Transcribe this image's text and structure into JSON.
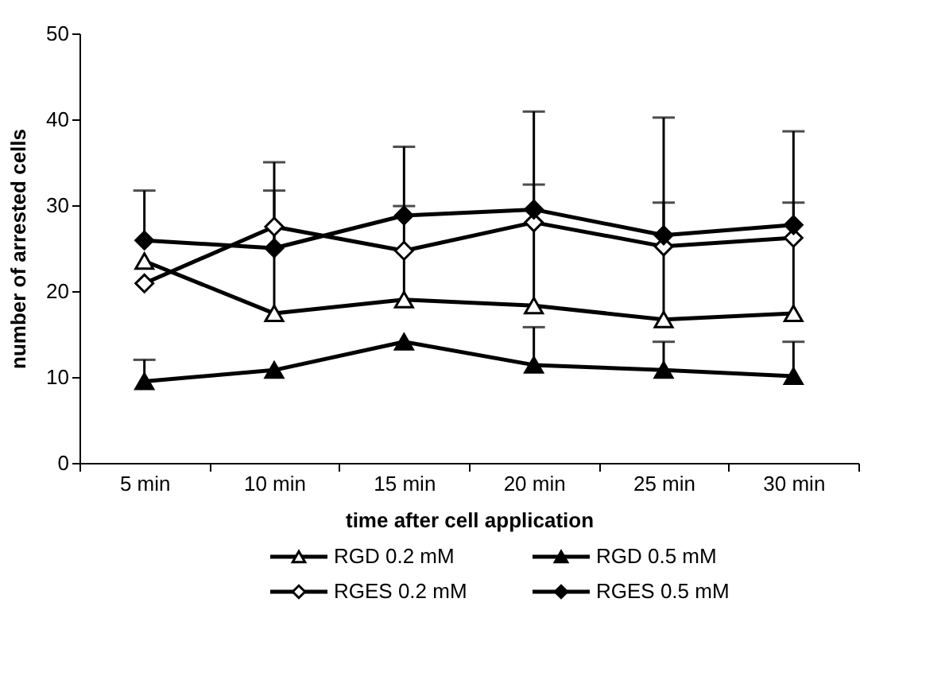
{
  "chart_data": {
    "type": "line",
    "xlabel": "time after cell application",
    "ylabel": "number of arrested cells",
    "categories": [
      "5 min",
      "10 min",
      "15 min",
      "20 min",
      "25 min",
      "30 min"
    ],
    "series": [
      {
        "name": "RGD 0.2 mM",
        "color": "#ffffff",
        "marker": "triangle",
        "values": [
          23.5,
          17.4,
          19.0,
          18.3,
          16.7,
          17.4
        ],
        "errors": [
          null,
          [
            17.4,
            31.7
          ],
          [
            19.0,
            29.9
          ],
          [
            18.3,
            32.4
          ],
          [
            16.7,
            30.3
          ],
          [
            17.4,
            30.3
          ]
        ]
      },
      {
        "name": "RGD 0.5 mM",
        "color": "#000000",
        "marker": "triangle",
        "values": [
          9.5,
          10.8,
          14.1,
          11.4,
          10.8,
          10.1
        ],
        "errors": [
          [
            9.5,
            12.0
          ],
          null,
          null,
          [
            11.4,
            15.8
          ],
          [
            10.8,
            14.1
          ],
          [
            10.1,
            14.1
          ]
        ]
      },
      {
        "name": "RGES 0.2 mM",
        "color": "#ffffff",
        "marker": "diamond",
        "values": [
          20.9,
          27.5,
          24.7,
          28.0,
          25.2,
          26.2
        ],
        "errors": [
          null,
          null,
          null,
          null,
          null,
          null
        ]
      },
      {
        "name": "RGES 0.5 mM",
        "color": "#000000",
        "marker": "diamond",
        "values": [
          25.9,
          25.0,
          28.8,
          29.5,
          26.5,
          27.7
        ],
        "errors": [
          [
            25.9,
            31.7
          ],
          [
            25.0,
            35.0
          ],
          [
            28.8,
            36.8
          ],
          [
            29.5,
            40.9
          ],
          [
            26.5,
            40.2
          ],
          [
            27.7,
            38.6
          ]
        ]
      }
    ],
    "ylim": [
      0,
      50
    ],
    "yticks": [
      0,
      10,
      20,
      30,
      40,
      50
    ],
    "grid": false,
    "legend": "bottom"
  }
}
